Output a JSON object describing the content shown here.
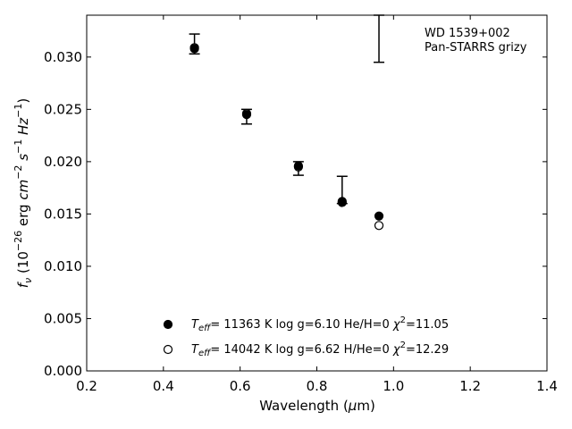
{
  "chart_data": {
    "type": "scatter",
    "xlabel": "Wavelength (μm)",
    "ylabel": "f_ν (10^-26 erg cm^-2 s^-1 Hz^-1)",
    "xlim": [
      0.2,
      1.4
    ],
    "ylim": [
      0.0,
      0.034
    ],
    "x_ticks": [
      0.2,
      0.4,
      0.6,
      0.8,
      1.0,
      1.2,
      1.4
    ],
    "y_ticks": [
      0.0,
      0.005,
      0.01,
      0.015,
      0.02,
      0.025,
      0.03
    ],
    "x_tick_labels": [
      "0.2",
      "0.4",
      "0.6",
      "0.8",
      "1.0",
      "1.2",
      "1.4"
    ],
    "y_tick_labels": [
      "0.000",
      "0.005",
      "0.010",
      "0.015",
      "0.020",
      "0.025",
      "0.030"
    ],
    "grid": false,
    "annotation": [
      "WD 1539+002",
      "Pan-STARRS grizy"
    ],
    "observed": {
      "x": [
        0.481,
        0.617,
        0.752,
        0.866,
        0.962
      ],
      "y": [
        0.0309,
        0.0246,
        0.0195,
        0.0164,
        null
      ],
      "err_low": [
        0.0303,
        0.0236,
        0.0187,
        0.016,
        0.0295
      ],
      "err_high": [
        0.0322,
        0.025,
        0.02,
        0.0186,
        0.034
      ]
    },
    "series": [
      {
        "name": "Teff= 11363 K  log g=6.10  He/H=0  χ2=11.05",
        "marker": "filled",
        "x": [
          0.481,
          0.617,
          0.752,
          0.866,
          0.962
        ],
        "y": [
          0.0308,
          0.0245,
          0.0196,
          0.0162,
          0.0148
        ]
      },
      {
        "name": "Teff= 14042 K  log g=6.62  H/He=0  χ2=12.29",
        "marker": "open",
        "x": [
          0.481,
          0.617,
          0.752,
          0.866,
          0.962
        ],
        "y": [
          0.0309,
          0.0246,
          0.0195,
          0.0161,
          0.0139
        ]
      }
    ],
    "legend": {
      "placement": "lower-center",
      "entries": [
        {
          "T": "T",
          "sub": "eff",
          "rest": "= 11363 K  log g=6.10  He/H=0  ",
          "chi": "χ",
          "sup": "2",
          "val": "=11.05"
        },
        {
          "T": "T",
          "sub": "eff",
          "rest": "= 14042 K  log g=6.62  H/He=0  ",
          "chi": "χ",
          "sup": "2",
          "val": "=12.29"
        }
      ]
    },
    "colors": {
      "points": "#000000",
      "open_fill": "#ffffff"
    }
  },
  "labels": {
    "x_main": "Wavelength (",
    "x_mu": "μ",
    "x_unit": "m)",
    "y_f": "f",
    "y_nu": "ν",
    "y_open": " (10",
    "y_exp1": "−26",
    "y_erg": " erg ",
    "y_cm": "cm",
    "y_exp2": "−2",
    "y_s": " s",
    "y_exp3": "−1",
    "y_hz": " Hz",
    "y_exp4": "−1",
    "y_close": ")"
  }
}
